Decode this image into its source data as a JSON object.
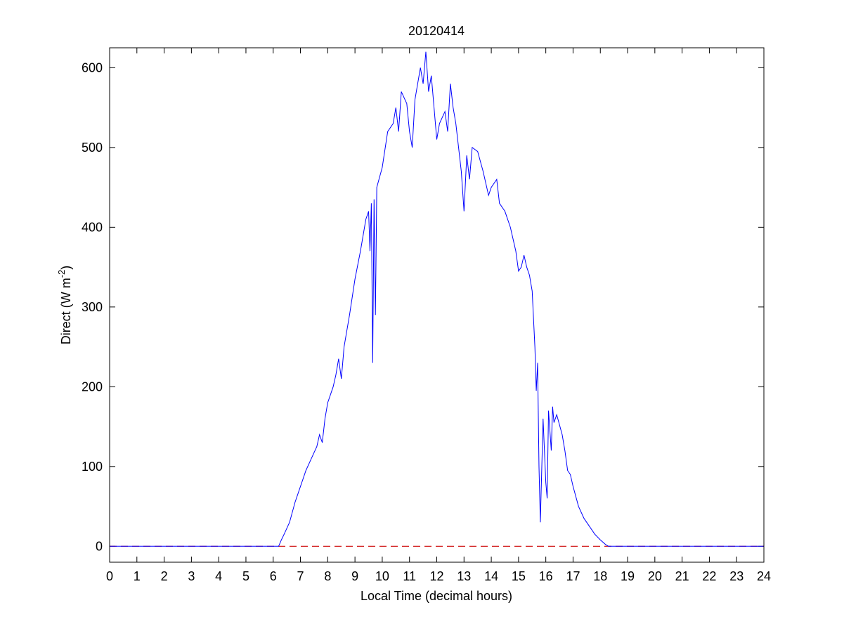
{
  "chart_data": {
    "type": "line",
    "title": "20120414",
    "xlabel": "Local Time (decimal hours)",
    "ylabel": {
      "text": "Direct (W m",
      "superscript": "-2",
      "suffix": ")"
    },
    "xlim": [
      0,
      24
    ],
    "ylim": [
      -20,
      625
    ],
    "xticks": [
      0,
      1,
      2,
      3,
      4,
      5,
      6,
      7,
      8,
      9,
      10,
      11,
      12,
      13,
      14,
      15,
      16,
      17,
      18,
      19,
      20,
      21,
      22,
      23,
      24
    ],
    "yticks": [
      0,
      100,
      200,
      300,
      400,
      500,
      600
    ],
    "grid": false,
    "reference_line": {
      "value": 0,
      "color": "#cc0000",
      "style": "dashed"
    },
    "series": [
      {
        "color": "#0000ff",
        "x": [
          0,
          6.2,
          6.3,
          6.4,
          6.6,
          6.8,
          7,
          7.2,
          7.4,
          7.6,
          7.7,
          7.8,
          7.9,
          8,
          8.1,
          8.2,
          8.3,
          8.4,
          8.5,
          8.6,
          8.8,
          9,
          9.2,
          9.4,
          9.5,
          9.55,
          9.6,
          9.65,
          9.7,
          9.75,
          9.8,
          10,
          10.2,
          10.4,
          10.5,
          10.6,
          10.7,
          10.9,
          11,
          11.1,
          11.2,
          11.4,
          11.5,
          11.6,
          11.7,
          11.8,
          11.9,
          12,
          12.1,
          12.3,
          12.4,
          12.5,
          12.6,
          12.7,
          12.8,
          12.9,
          13,
          13.1,
          13.2,
          13.3,
          13.5,
          13.7,
          13.9,
          14,
          14.2,
          14.3,
          14.5,
          14.7,
          14.9,
          15,
          15.1,
          15.2,
          15.3,
          15.4,
          15.5,
          15.6,
          15.65,
          15.7,
          15.75,
          15.8,
          15.9,
          16,
          16.05,
          16.1,
          16.2,
          16.25,
          16.3,
          16.4,
          16.6,
          16.7,
          16.8,
          16.9,
          17,
          17.2,
          17.4,
          17.6,
          17.8,
          18,
          18.2,
          18.3,
          24
        ],
        "values": [
          0,
          0,
          8,
          15,
          30,
          55,
          75,
          95,
          110,
          125,
          140,
          130,
          160,
          180,
          190,
          200,
          215,
          235,
          210,
          250,
          290,
          335,
          370,
          410,
          420,
          370,
          430,
          230,
          435,
          290,
          450,
          475,
          520,
          530,
          550,
          520,
          570,
          555,
          520,
          500,
          560,
          600,
          580,
          620,
          570,
          590,
          550,
          510,
          530,
          545,
          520,
          580,
          550,
          530,
          500,
          470,
          420,
          490,
          460,
          500,
          495,
          470,
          440,
          450,
          460,
          430,
          420,
          400,
          370,
          345,
          350,
          365,
          350,
          340,
          320,
          250,
          195,
          230,
          100,
          30,
          160,
          80,
          60,
          170,
          120,
          175,
          155,
          165,
          140,
          120,
          95,
          90,
          75,
          50,
          35,
          25,
          15,
          8,
          2,
          0,
          0
        ]
      }
    ]
  }
}
